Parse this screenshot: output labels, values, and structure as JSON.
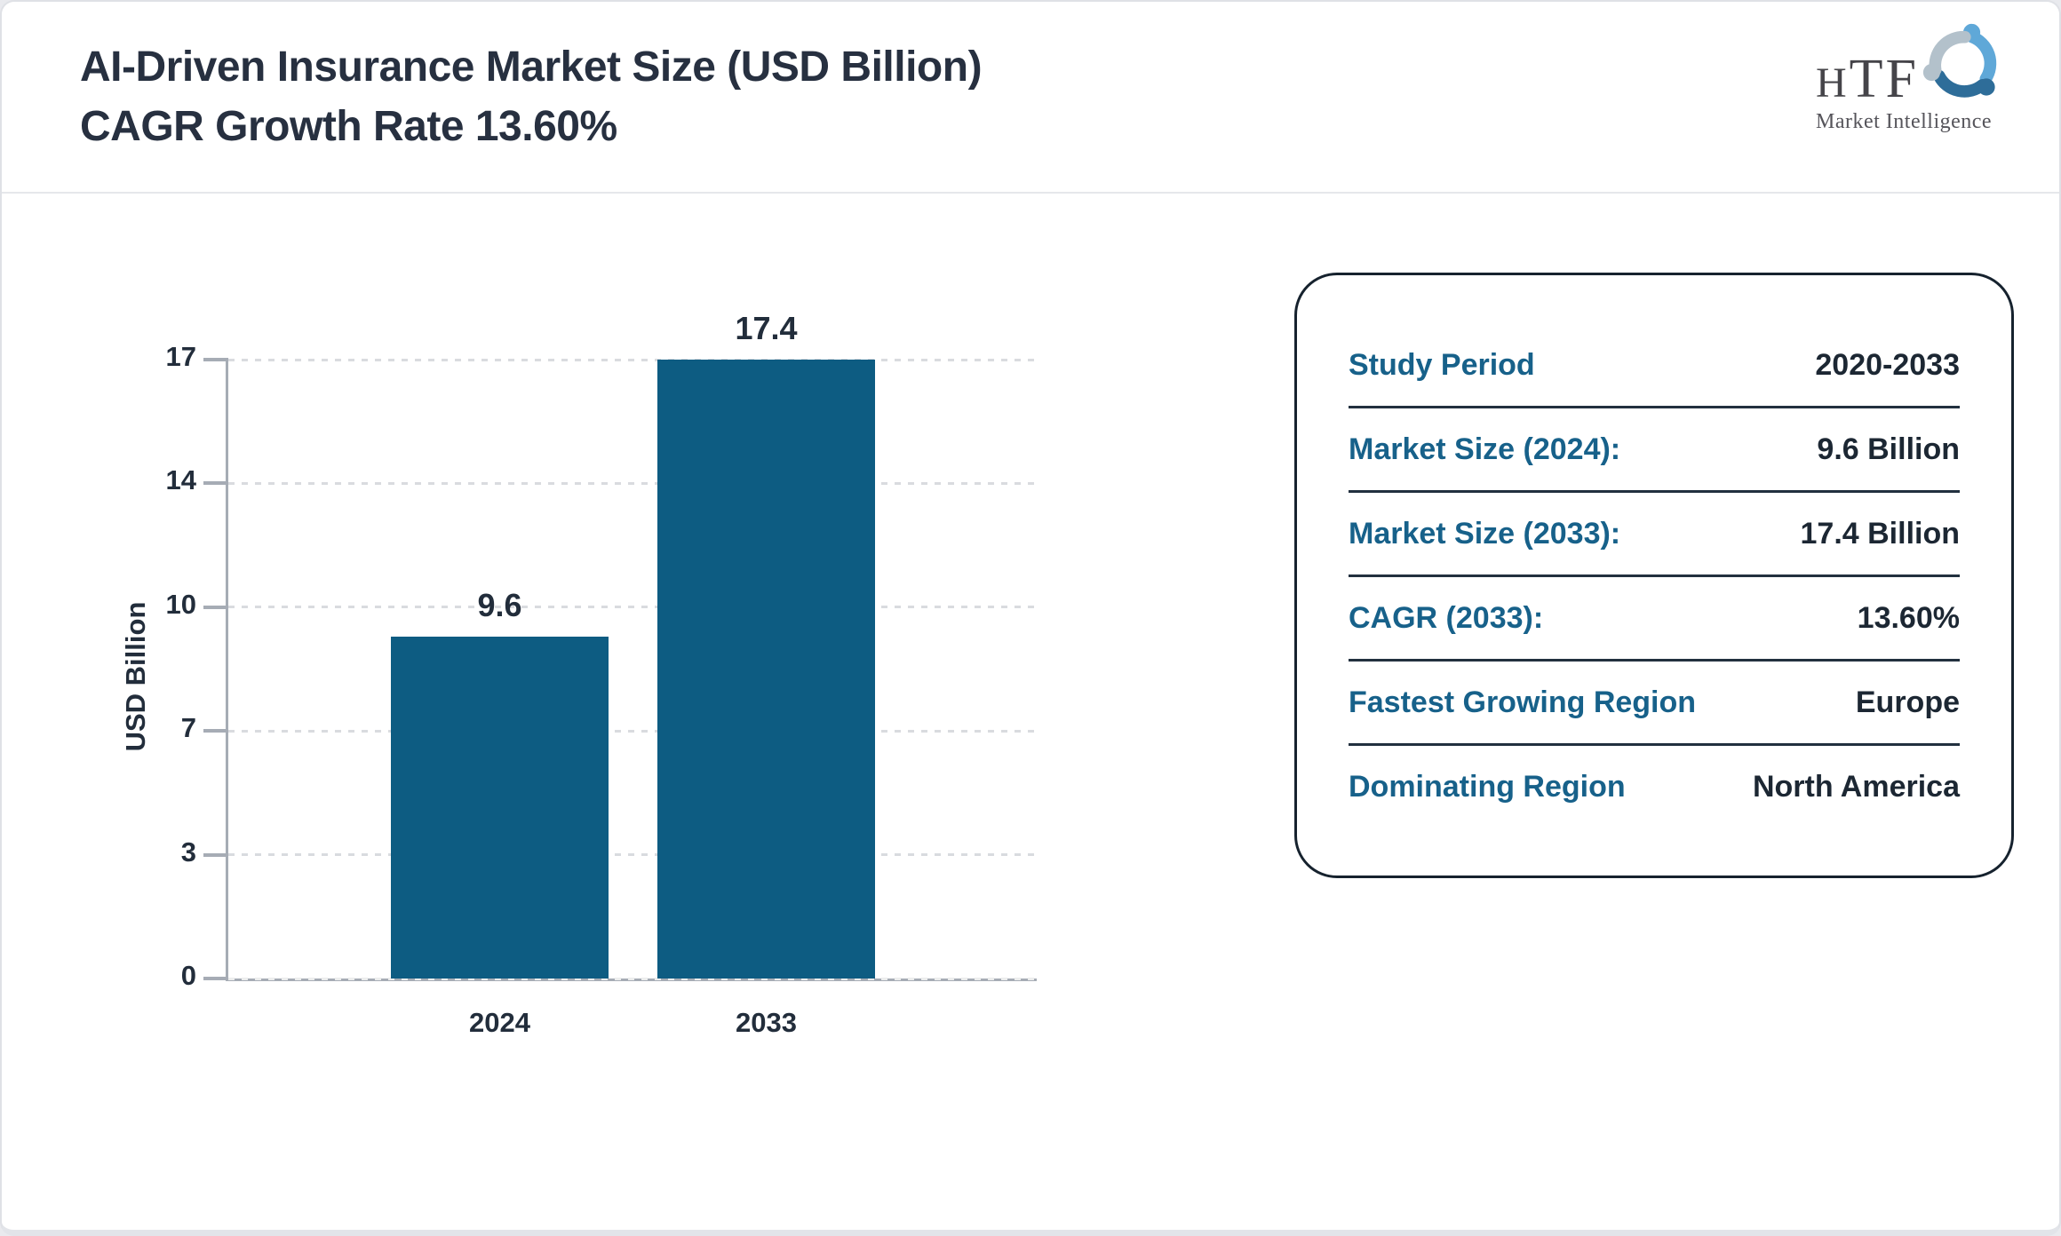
{
  "header": {
    "title_line1": "AI-Driven Insurance Market Size (USD Billion)",
    "title_line2": "CAGR Growth Rate 13.60%"
  },
  "logo": {
    "brand": "HTF",
    "subtitle": "Market Intelligence",
    "swirl_colors": [
      "#5fa8d8",
      "#b3c1cb",
      "#2e6d99"
    ]
  },
  "chart_data": {
    "type": "bar",
    "title": "AI-Driven Insurance Market Size (USD Billion) CAGR Growth Rate 13.60%",
    "categories": [
      "2024",
      "2033"
    ],
    "values": [
      9.6,
      17.4
    ],
    "xlabel": "",
    "ylabel": "USD Billion",
    "yticks": [
      0,
      3,
      7,
      10,
      14,
      17
    ],
    "ylim": [
      0,
      17.4
    ],
    "grid": "dotted horizontal",
    "legend_position": "none",
    "bar_color": "#0d5c82"
  },
  "panel": {
    "rows": [
      {
        "label": "Study Period",
        "value": "2020-2033"
      },
      {
        "label": "Market Size (2024):",
        "value": "9.6 Billion"
      },
      {
        "label": "Market Size (2033):",
        "value": "17.4 Billion"
      },
      {
        "label": "CAGR (2033):",
        "value": "13.60%"
      },
      {
        "label": "Fastest Growing Region",
        "value": "Europe"
      },
      {
        "label": "Dominating Region",
        "value": "North America"
      }
    ]
  }
}
